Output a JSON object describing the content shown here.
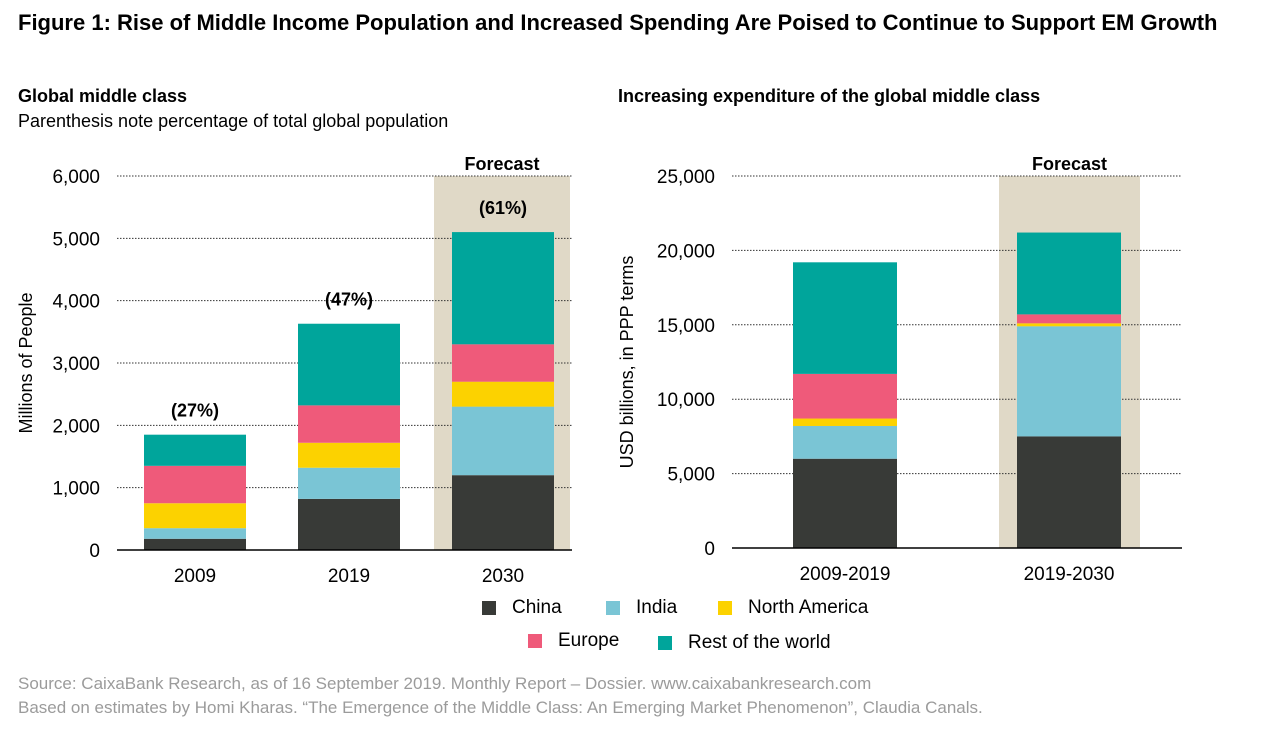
{
  "figure_title": "Figure 1: Rise of Middle Income Population and Increased Spending Are Poised to Continue to Support EM Growth",
  "colors": {
    "China": "#383a37",
    "India": "#7ac5d5",
    "North America": "#fcd200",
    "Europe": "#ef5a7a",
    "Rest of the world": "#00a59b",
    "forecast_band": "#e0d9c7"
  },
  "chart_data": [
    {
      "type": "bar",
      "stacked": true,
      "title": "Global middle class",
      "subtitle": "Parenthesis note percentage of total global population",
      "xlabel": "",
      "ylabel": "Millions of People",
      "ylim": [
        0,
        6000
      ],
      "yticks": [
        0,
        1000,
        2000,
        3000,
        4000,
        5000,
        6000
      ],
      "ytick_labels": [
        "0",
        "1,000",
        "2,000",
        "3,000",
        "4,000",
        "5,000",
        "6,000"
      ],
      "categories": [
        "2009",
        "2019",
        "2030"
      ],
      "series": [
        {
          "name": "China",
          "values": [
            180,
            820,
            1200
          ]
        },
        {
          "name": "India",
          "values": [
            170,
            500,
            1100
          ]
        },
        {
          "name": "North America",
          "values": [
            400,
            400,
            400
          ]
        },
        {
          "name": "Europe",
          "values": [
            600,
            600,
            600
          ]
        },
        {
          "name": "Rest of the world",
          "values": [
            500,
            1310,
            1800
          ]
        }
      ],
      "bar_labels": [
        "(27%)",
        "(47%)",
        "(61%)"
      ],
      "forecast_label": "Forecast",
      "forecast_category": "2030",
      "grid": "horizontal dotted"
    },
    {
      "type": "bar",
      "stacked": true,
      "title": "Increasing expenditure of the global middle class",
      "xlabel": "",
      "ylabel": "USD billions, in PPP terms",
      "ylim": [
        0,
        25000
      ],
      "yticks": [
        0,
        5000,
        10000,
        15000,
        20000,
        25000
      ],
      "ytick_labels": [
        "0",
        "5,000",
        "10,000",
        "15,000",
        "20,000",
        "25,000"
      ],
      "categories": [
        "2009-2019",
        "2019-2030"
      ],
      "series": [
        {
          "name": "China",
          "values": [
            6000,
            7500
          ]
        },
        {
          "name": "India",
          "values": [
            2200,
            7400
          ]
        },
        {
          "name": "North America",
          "values": [
            500,
            200
          ]
        },
        {
          "name": "Europe",
          "values": [
            3000,
            600
          ]
        },
        {
          "name": "Rest of the world",
          "values": [
            7500,
            5500
          ]
        }
      ],
      "forecast_label": "Forecast",
      "forecast_category": "2019-2030",
      "grid": "horizontal dotted"
    }
  ],
  "legend": {
    "row1": [
      "China",
      "India",
      "North America"
    ],
    "row2": [
      "Europe",
      "Rest of the world"
    ]
  },
  "source": {
    "line1": "Source: CaixaBank Research, as of 16 September 2019. Monthly Report – Dossier.  www.caixabankresearch.com",
    "line2": "Based on estimates by Homi Kharas. “The Emergence of the Middle Class: An Emerging Market Phenomenon”, Claudia Canals."
  }
}
